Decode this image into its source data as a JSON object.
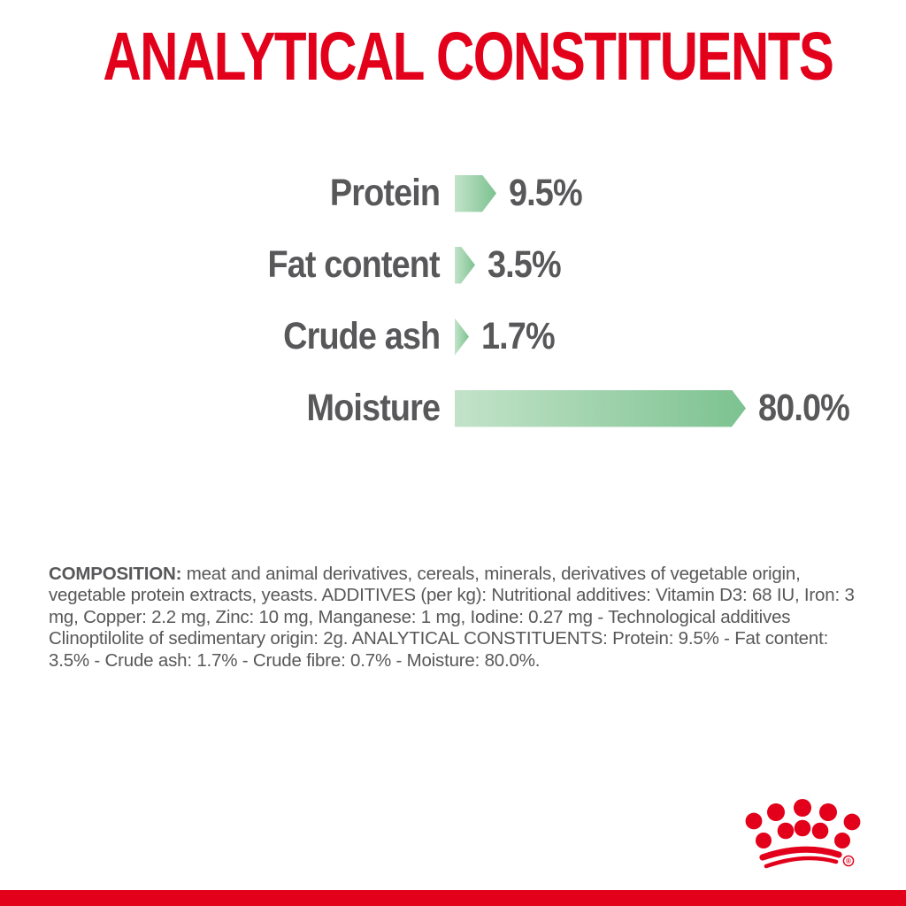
{
  "page": {
    "background": "#ffffff",
    "accent_red": "#e2001a",
    "text_gray": "#58585a"
  },
  "title": {
    "text": "ANALYTICAL CONSTITUENTS",
    "color": "#e2001a"
  },
  "chart_data": {
    "type": "bar",
    "orientation": "horizontal",
    "title": "ANALYTICAL CONSTITUENTS",
    "categories": [
      "Protein",
      "Fat content",
      "Crude ash",
      "Moisture"
    ],
    "values": [
      9.5,
      3.5,
      1.7,
      80.0
    ],
    "value_labels": [
      "9.5%",
      "3.5%",
      "1.7%",
      "80.0%"
    ],
    "unit": "%",
    "axis_range": [
      0,
      100
    ],
    "grid": false,
    "legend": false,
    "bar_shape": "right-pointing-arrow",
    "bar_gradient_start": "#c3e3c9",
    "bar_gradient_end": "#7cc290",
    "label_color": "#58585a"
  },
  "composition": {
    "lead": "COMPOSITION:",
    "body": " meat and animal derivatives, cereals, minerals, derivatives of vegetable origin, vegetable protein extracts, yeasts. ADDITIVES (per kg): Nutritional additives: Vitamin D3: 68 IU, Iron: 3 mg, Copper: 2.2 mg, Zinc: 10 mg, Manganese: 1 mg, Iodine: 0.27 mg - Technological additives Clinoptilolite of sedimentary origin: 2g. ANALYTICAL CONSTITUENTS: Protein: 9.5% - Fat content: 3.5% - Crude ash: 1.7% - Crude fibre: 0.7% - Moisture: 80.0%.",
    "color": "#58585a"
  },
  "footer": {
    "logo_name": "royal-canin-crown",
    "registered_mark": "®",
    "stripe_color": "#e2001a"
  }
}
